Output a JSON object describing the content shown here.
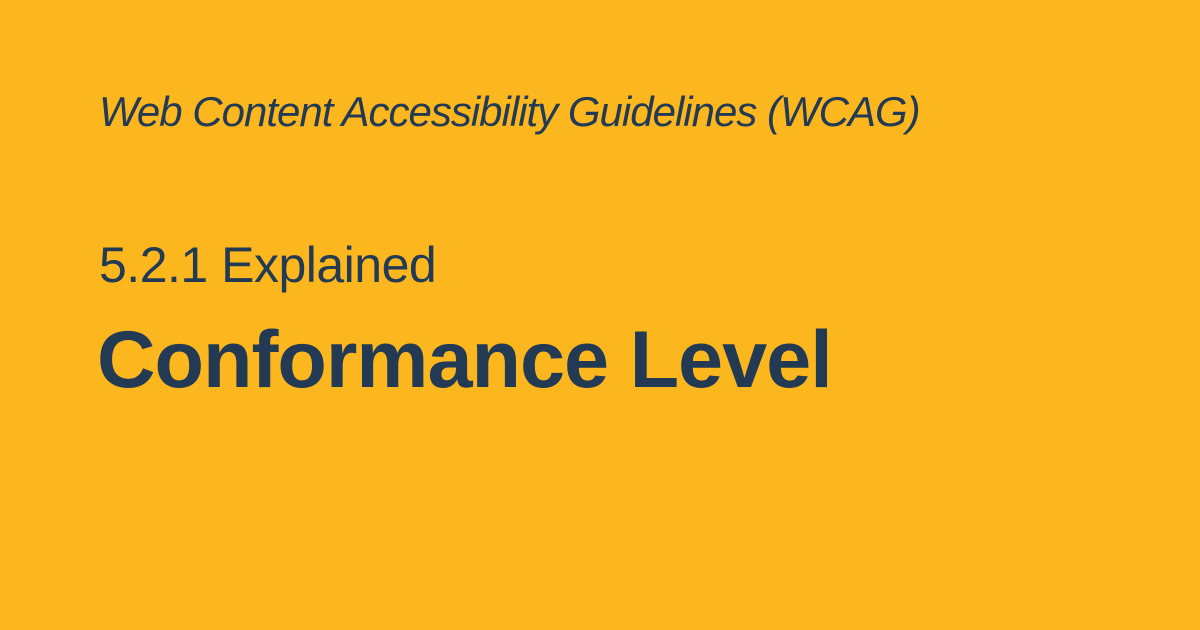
{
  "eyebrow": "Web Content Accessibility Guidelines (WCAG)",
  "subtitle": "5.2.1 Explained",
  "title": "Conformance Level",
  "colors": {
    "background": "#FDB71E",
    "text": "#233A55"
  }
}
